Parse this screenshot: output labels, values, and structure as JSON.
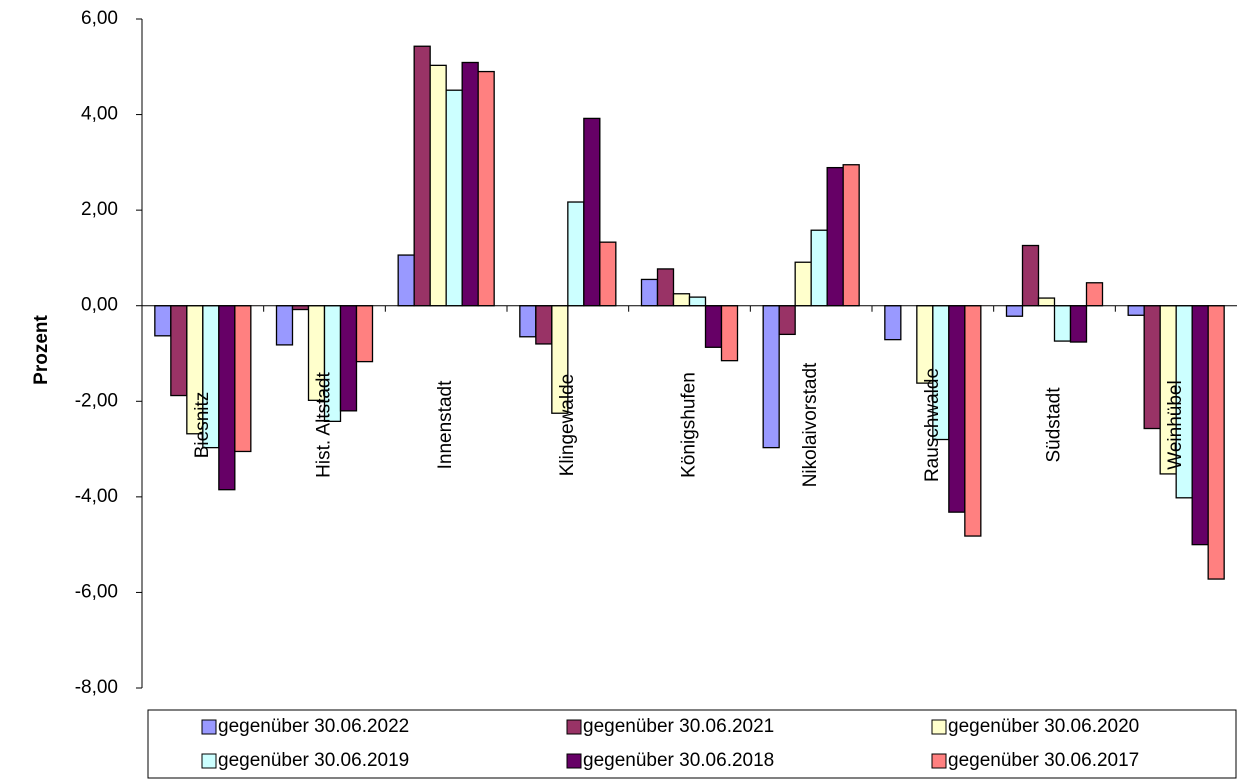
{
  "chart_data": {
    "type": "bar",
    "y_label": "Prozent",
    "categories": [
      "Biesnitz",
      "Hist. Altstadt",
      "Innenstadt",
      "Klingewalde",
      "Königshufen",
      "Nikolaivorstadt",
      "Rauschwalde",
      "Südstadt",
      "Weinhübel"
    ],
    "series": [
      {
        "name": "gegenüber 30.06.2022",
        "color": "#9999ff",
        "values": [
          -0.63,
          -0.82,
          1.06,
          -0.65,
          0.55,
          -2.97,
          -0.71,
          -0.22,
          -0.2
        ]
      },
      {
        "name": "gegenüber 30.06.2021",
        "color": "#993366",
        "values": [
          -1.88,
          -0.08,
          5.43,
          -0.8,
          0.77,
          -0.6,
          0,
          1.26,
          -2.57
        ]
      },
      {
        "name": "gegenüber 30.06.2020",
        "color": "#ffffcc",
        "values": [
          -2.68,
          -1.98,
          5.03,
          -2.25,
          0.25,
          0.91,
          -1.62,
          0.16,
          -3.52
        ]
      },
      {
        "name": "gegenüber 30.06.2019",
        "color": "#ccffff",
        "values": [
          -2.97,
          -2.42,
          4.51,
          2.17,
          0.18,
          1.58,
          -2.8,
          -0.74,
          -4.02
        ]
      },
      {
        "name": "gegenüber 30.06.2018",
        "color": "#660066",
        "values": [
          -3.85,
          -2.2,
          5.09,
          3.92,
          -0.87,
          2.89,
          -4.32,
          -0.76,
          -5.0
        ]
      },
      {
        "name": "gegenüber 30.06.2017",
        "color": "#ff8080",
        "values": [
          -3.05,
          -1.17,
          4.9,
          1.33,
          -1.15,
          2.95,
          -4.82,
          0.48,
          -5.72
        ]
      }
    ],
    "ylim": [
      -8,
      6
    ],
    "yticks": [
      {
        "value": -8,
        "label": "-8,00"
      },
      {
        "value": -6,
        "label": "-6,00"
      },
      {
        "value": -4,
        "label": "-4,00"
      },
      {
        "value": -2,
        "label": "-2,00"
      },
      {
        "value": 0,
        "label": "0,00"
      },
      {
        "value": 2,
        "label": "2,00"
      },
      {
        "value": 4,
        "label": "4,00"
      },
      {
        "value": 6,
        "label": "6,00"
      }
    ],
    "legend_position": "bottom"
  }
}
